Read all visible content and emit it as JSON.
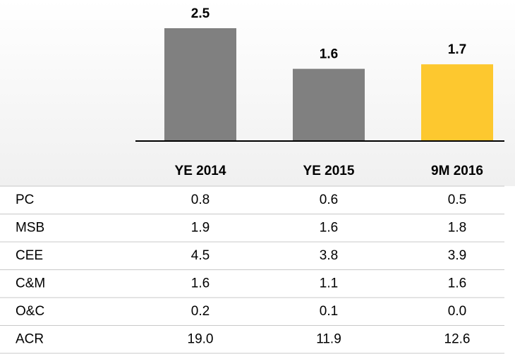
{
  "chart_data": {
    "type": "bar",
    "categories": [
      "YE 2014",
      "YE 2015",
      "9M 2016"
    ],
    "values": [
      2.5,
      1.6,
      1.7
    ],
    "colors": [
      "#808080",
      "#808080",
      "#fdc82f"
    ]
  },
  "table": {
    "rows": [
      [
        "PC",
        "0.8",
        "0.6",
        "0.5"
      ],
      [
        "MSB",
        "1.9",
        "1.6",
        "1.8"
      ],
      [
        "CEE",
        "4.5",
        "3.8",
        "3.9"
      ],
      [
        "C&M",
        "1.6",
        "1.1",
        "1.6"
      ],
      [
        "O&C",
        "0.2",
        "0.1",
        "0.0"
      ],
      [
        "ACR",
        "19.0",
        "11.9",
        "12.6"
      ]
    ]
  }
}
